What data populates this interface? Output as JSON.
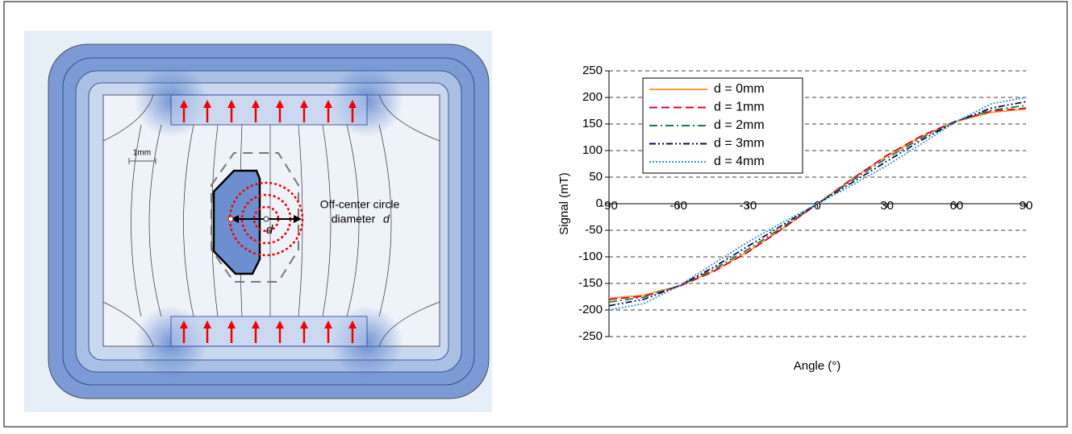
{
  "diagram": {
    "scale_label": "1mm",
    "annotation_line1": "Off-center circle",
    "annotation_line2": "diameter",
    "annotation_var": "d",
    "d_label": "d"
  },
  "chart_data": {
    "type": "line",
    "x_label": "Angle (°)",
    "y_label": "Signal (mT)",
    "x": [
      -90,
      -75,
      -60,
      -45,
      -30,
      -15,
      0,
      15,
      30,
      45,
      60,
      75,
      90
    ],
    "xlim": [
      -90,
      90
    ],
    "xticks": [
      -90,
      -60,
      -30,
      0,
      30,
      60,
      90
    ],
    "ylim": [
      -250,
      250
    ],
    "yticks": [
      -250,
      -200,
      -150,
      -100,
      -50,
      0,
      50,
      100,
      150,
      200,
      250
    ],
    "grid": true,
    "legend": "upper-left",
    "series": [
      {
        "name": "d = 0mm",
        "color": "#ff9933",
        "style": "solid",
        "values": [
          -178,
          -172,
          -155,
          -127,
          -90,
          -47,
          0,
          47,
          90,
          127,
          155,
          172,
          178
        ]
      },
      {
        "name": "d = 1mm",
        "color": "#e3002b",
        "style": "dashed",
        "values": [
          -180,
          -174,
          -156,
          -128,
          -91,
          -47,
          0,
          47,
          91,
          128,
          156,
          174,
          180
        ]
      },
      {
        "name": "d = 2mm",
        "color": "#1b7a3c",
        "style": "dashdot",
        "values": [
          -185,
          -176,
          -155,
          -124,
          -86,
          -44,
          0,
          44,
          86,
          124,
          155,
          176,
          185
        ]
      },
      {
        "name": "d = 3mm",
        "color": "#0a0a5a",
        "style": "dashdotdot",
        "values": [
          -192,
          -180,
          -155,
          -120,
          -80,
          -40,
          0,
          40,
          80,
          120,
          155,
          180,
          192
        ]
      },
      {
        "name": "d = 4mm",
        "color": "#3a8fd0",
        "style": "dotted",
        "values": [
          -200,
          -188,
          -155,
          -113,
          -72,
          -35,
          0,
          35,
          72,
          113,
          155,
          188,
          200
        ]
      }
    ]
  }
}
